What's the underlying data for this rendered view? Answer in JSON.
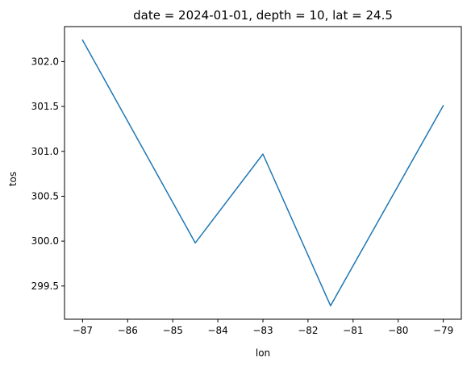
{
  "chart_data": {
    "type": "line",
    "title": "date = 2024-01-01, depth = 10, lat = 24.5",
    "xlabel": "lon",
    "ylabel": "tos",
    "x": [
      -87,
      -84.5,
      -83,
      -81.5,
      -79
    ],
    "series": [
      {
        "values": [
          302.24,
          299.98,
          300.97,
          299.28,
          301.51
        ],
        "color": "#1f77b4"
      }
    ],
    "xlim": [
      -87.4,
      -78.6
    ],
    "ylim": [
      299.13,
      302.39
    ],
    "xticks": [
      -87,
      -86,
      -85,
      -84,
      -83,
      -82,
      -81,
      -80,
      -79
    ],
    "xtick_labels": [
      "−87",
      "−86",
      "−85",
      "−84",
      "−83",
      "−82",
      "−81",
      "−80",
      "−79"
    ],
    "yticks": [
      299.5,
      300.0,
      300.5,
      301.0,
      301.5,
      302.0
    ],
    "ytick_labels": [
      "299.5",
      "300.0",
      "300.5",
      "301.0",
      "301.5",
      "302.0"
    ],
    "grid": false,
    "legend": "none"
  }
}
